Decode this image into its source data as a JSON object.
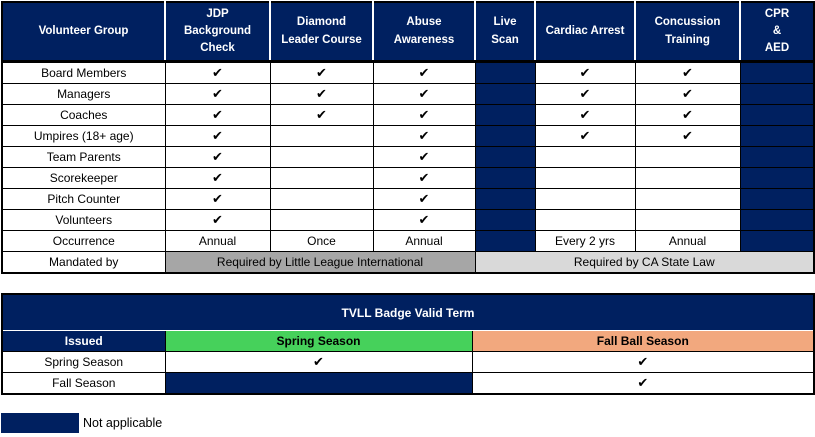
{
  "colors": {
    "navy": "#002060",
    "green": "#46d15b",
    "orange": "#f2a87e",
    "gray_dark": "#a6a6a6",
    "gray_light": "#d9d9d9"
  },
  "check_glyph": "✔",
  "requirements_table": {
    "columns": [
      {
        "id": "volunteer-group",
        "label": "Volunteer Group"
      },
      {
        "id": "jdp-background-check",
        "label": "JDP\nBackground\nCheck"
      },
      {
        "id": "diamond-leader-course",
        "label": "Diamond\nLeader Course"
      },
      {
        "id": "abuse-awareness",
        "label": "Abuse\nAwareness"
      },
      {
        "id": "live-scan",
        "label": "Live\nScan"
      },
      {
        "id": "cardiac-arrest",
        "label": "Cardiac Arrest"
      },
      {
        "id": "concussion-training",
        "label": "Concussion\nTraining"
      },
      {
        "id": "cpr-aed",
        "label": "CPR\n&\nAED"
      }
    ],
    "rows": [
      {
        "label": "Board Members",
        "cells": [
          "C",
          "C",
          "C",
          "NA",
          "C",
          "C",
          "NA"
        ]
      },
      {
        "label": "Managers",
        "cells": [
          "C",
          "C",
          "C",
          "NA",
          "C",
          "C",
          "NA"
        ]
      },
      {
        "label": "Coaches",
        "cells": [
          "C",
          "C",
          "C",
          "NA",
          "C",
          "C",
          "NA"
        ]
      },
      {
        "label": "Umpires (18+ age)",
        "cells": [
          "C",
          "",
          "C",
          "NA",
          "C",
          "C",
          "NA"
        ]
      },
      {
        "label": "Team Parents",
        "cells": [
          "C",
          "",
          "C",
          "NA",
          "",
          "",
          "NA"
        ]
      },
      {
        "label": "Scorekeeper",
        "cells": [
          "C",
          "",
          "C",
          "NA",
          "",
          "",
          "NA"
        ]
      },
      {
        "label": "Pitch Counter",
        "cells": [
          "C",
          "",
          "C",
          "NA",
          "",
          "",
          "NA"
        ]
      },
      {
        "label": "Volunteers",
        "cells": [
          "C",
          "",
          "C",
          "NA",
          "",
          "",
          "NA"
        ]
      },
      {
        "label": "Occurrence",
        "cells": [
          "Annual",
          "Once",
          "Annual",
          "NA",
          "Every 2 yrs",
          "Annual",
          "NA"
        ]
      }
    ],
    "mandated_row": {
      "label": "Mandated by",
      "spans": [
        {
          "text": "Required by Little League International",
          "colspan": 3,
          "tone": "gray-dark"
        },
        {
          "text": "Required by CA State Law",
          "colspan": 4,
          "tone": "gray-light"
        }
      ]
    }
  },
  "badge_table": {
    "title": "TVLL Badge Valid Term",
    "columns": [
      {
        "id": "issued",
        "label": "Issued",
        "tone": "hd-navy"
      },
      {
        "id": "spring-season",
        "label": "Spring Season",
        "tone": "hd-green"
      },
      {
        "id": "fall-ball-season",
        "label": "Fall Ball Season",
        "tone": "hd-orange"
      }
    ],
    "rows": [
      {
        "label": "Spring Season",
        "cells": [
          "C",
          "C"
        ]
      },
      {
        "label": "Fall Season",
        "cells": [
          "NA",
          "C"
        ]
      }
    ]
  },
  "legend": {
    "label": "Not applicable"
  }
}
